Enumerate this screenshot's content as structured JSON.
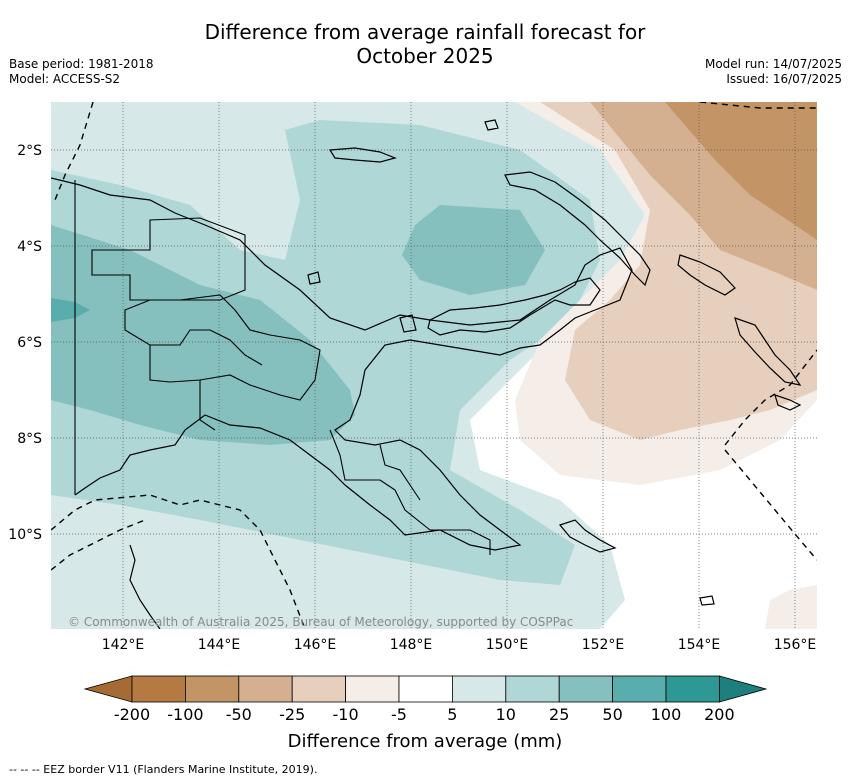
{
  "title_line1": "Difference from average rainfall forecast for",
  "title_line2": "October 2025",
  "base_period": "Base period: 1981-2018",
  "model": "Model: ACCESS-S2",
  "model_run": "Model run: 14/07/2025",
  "issued": "Issued: 16/07/2025",
  "lat_labels": [
    "2°S",
    "4°S",
    "6°S",
    "8°S",
    "10°S"
  ],
  "lon_labels": [
    "142°E",
    "144°E",
    "146°E",
    "148°E",
    "150°E",
    "152°E",
    "154°E",
    "156°E"
  ],
  "copyright": "© Commonwealth of Australia 2025, Bureau of Meteorology, supported by COSPPac",
  "colorbar": {
    "title": "Difference from average (mm)",
    "tick_labels": [
      "-200",
      "-100",
      "-50",
      "-25",
      "-10",
      "-5",
      "5",
      "10",
      "25",
      "50",
      "100",
      "200"
    ],
    "colors": [
      "#a56a35",
      "#b47a42",
      "#c39465",
      "#d4b090",
      "#e6cfbd",
      "#f5ede7",
      "#ffffff",
      "#d6e9e8",
      "#aed7d6",
      "#85c0bf",
      "#5aadad",
      "#2e9894",
      "#1f7f7c"
    ]
  },
  "footer": "--  --  -- EEZ border V11 (Flanders Marine Institute, 2019)."
}
